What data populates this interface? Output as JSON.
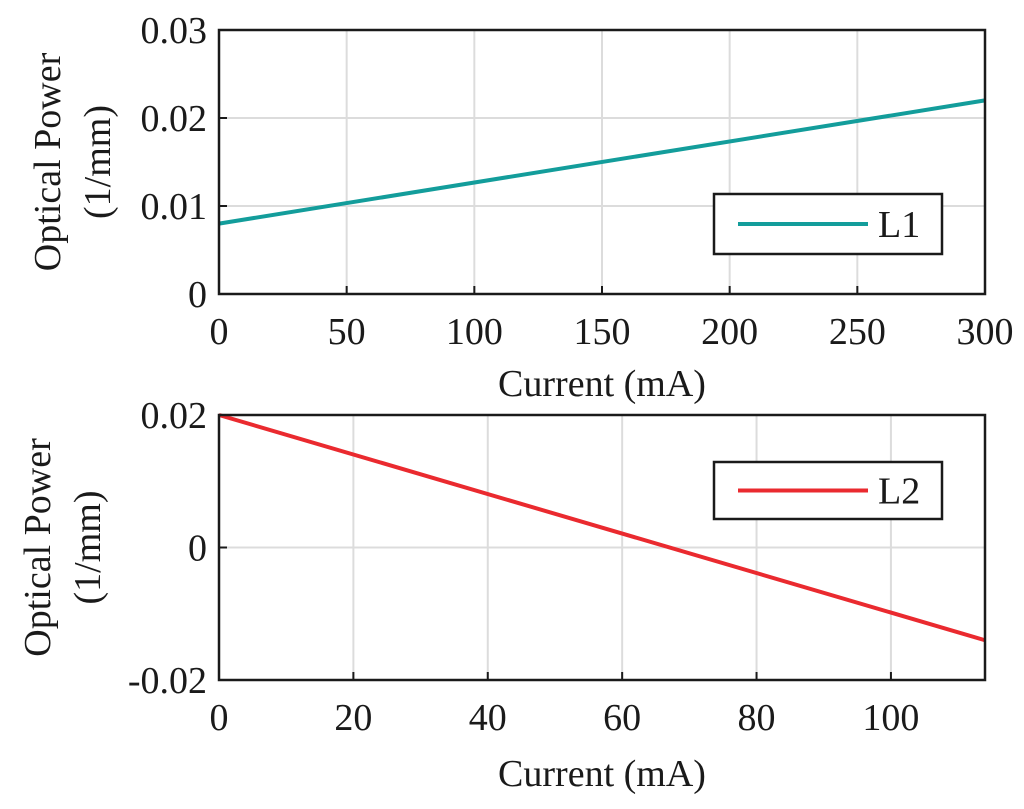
{
  "chart_data": [
    {
      "type": "line",
      "xlabel": "Current (mA)",
      "ylabel_line1": "Optical Power",
      "ylabel_line2": "(1/mm)",
      "xlim": [
        0,
        300
      ],
      "ylim": [
        0,
        0.03
      ],
      "x_ticks": [
        0,
        50,
        100,
        150,
        200,
        250,
        300
      ],
      "x_tick_labels": [
        "0",
        "50",
        "100",
        "150",
        "200",
        "250",
        "300"
      ],
      "y_ticks": [
        0,
        0.01,
        0.02,
        0.03
      ],
      "y_tick_labels": [
        "0",
        "0.01",
        "0.02",
        "0.03"
      ],
      "grid": true,
      "legend_position": "right",
      "series": [
        {
          "name": "L1",
          "color": "#139d9b",
          "x": [
            0,
            300
          ],
          "values": [
            0.008,
            0.022
          ]
        }
      ]
    },
    {
      "type": "line",
      "xlabel": "Current (mA)",
      "ylabel_line1": "Optical Power",
      "ylabel_line2": "(1/mm)",
      "xlim": [
        0,
        114
      ],
      "ylim": [
        -0.02,
        0.02
      ],
      "x_ticks": [
        0,
        20,
        40,
        60,
        80,
        100
      ],
      "x_tick_labels": [
        "0",
        "20",
        "40",
        "60",
        "80",
        "100"
      ],
      "y_ticks": [
        -0.02,
        0,
        0.02
      ],
      "y_tick_labels": [
        "-0.02",
        "0",
        "0.02"
      ],
      "grid": true,
      "legend_position": "top-right",
      "series": [
        {
          "name": "L2",
          "color": "#ea2a2f",
          "x": [
            0,
            114
          ],
          "values": [
            0.02,
            -0.014
          ]
        }
      ]
    }
  ]
}
